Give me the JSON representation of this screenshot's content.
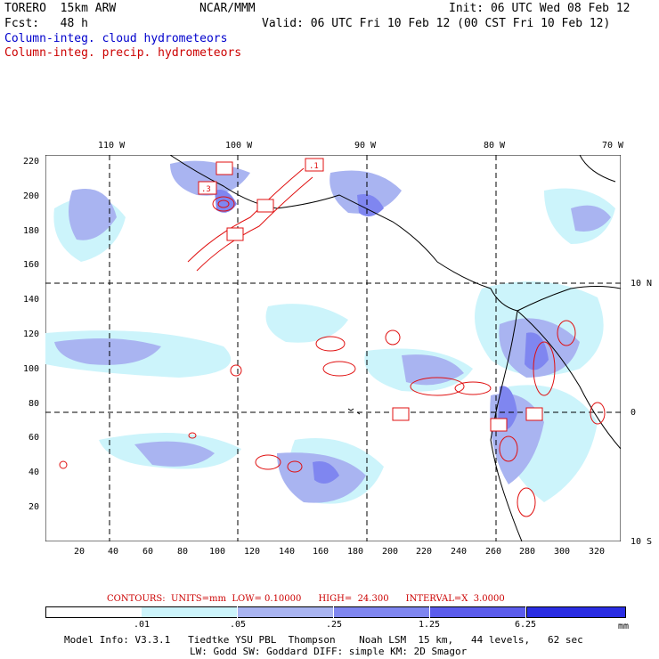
{
  "header": {
    "model": "TORERO  15km ARW",
    "org": "NCAR/MMM",
    "init": "Init: 06 UTC Wed 08 Feb 12",
    "fcst": "Fcst:   48 h",
    "valid": "Valid: 06 UTC Fri 10 Feb 12 (00 CST Fri 10 Feb 12)"
  },
  "fields": {
    "cloud": "Column-integ. cloud hydrometeors",
    "precip": "Column-integ. precip. hydrometeors"
  },
  "axes": {
    "x_ticks": [
      "20",
      "40",
      "60",
      "80",
      "100",
      "120",
      "140",
      "160",
      "180",
      "200",
      "220",
      "240",
      "260",
      "280",
      "300",
      "320"
    ],
    "y_ticks": [
      "220",
      "200",
      "180",
      "160",
      "140",
      "120",
      "100",
      "80",
      "60",
      "40",
      "20"
    ],
    "lon_labels": [
      "110 W",
      "100 W",
      "90 W",
      "80 W",
      "70 W"
    ],
    "lat_labels": [
      "10 N",
      "0",
      "10 S"
    ]
  },
  "map_data": {
    "grid_x_range": [
      1,
      334
    ],
    "grid_y_range": [
      1,
      224
    ],
    "lon_lines_gridx": [
      38,
      112,
      186,
      260,
      334
    ],
    "lat_lines_gridy": [
      150,
      76,
      2
    ],
    "contour_box_labels": [
      ".1",
      ".3"
    ]
  },
  "contours_line": {
    "label": "CONTOURS:  UNITS=mm  LOW= 0.10000      HIGH=  24.300      INTERVAL=X  3.0000"
  },
  "colorbar": {
    "labels": [
      ".01",
      ".05",
      ".25",
      "1.25",
      "6.25"
    ],
    "units": "mm",
    "colors": [
      "#ffffff",
      "#ccf4fb",
      "#a9b4f1",
      "#7f86f0",
      "#5b5cec",
      "#2a2de3"
    ]
  },
  "footer": {
    "line1": "Model Info: V3.3.1   Tiedtke YSU PBL  Thompson    Noah LSM  15 km,   44 levels,   62 sec",
    "line2": "LW: Godd SW: Goddard DIFF: simple KM: 2D Smagor"
  }
}
